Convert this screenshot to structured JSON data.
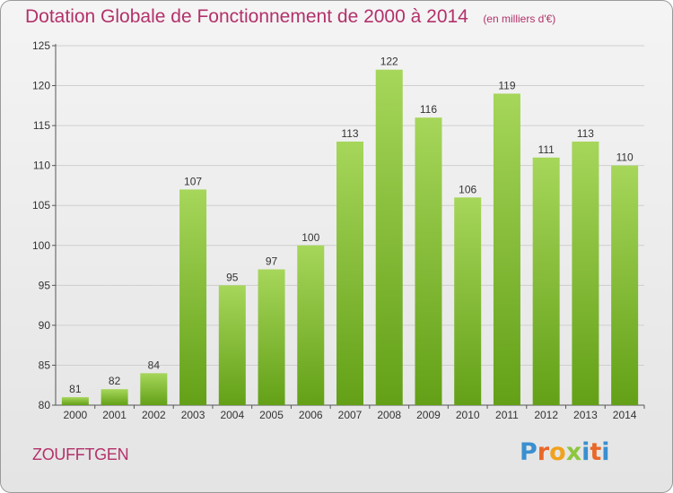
{
  "header": {
    "title": "Dotation Globale de Fonctionnement de 2000 à 2014",
    "unit": "(en milliers d'€)"
  },
  "footer": {
    "commune": "ZOUFFTGEN",
    "logo_letters": [
      "P",
      "r",
      "o",
      "x",
      "i",
      "t",
      "i"
    ]
  },
  "colors": {
    "title": "#b3316a",
    "bar_light": "#a6d65a",
    "bar_dark": "#63a017",
    "logo": [
      "#3a8fd0",
      "#e8682a",
      "#f0a21e",
      "#8cc63f",
      "#3a8fd0",
      "#e8682a",
      "#3a8fd0"
    ]
  },
  "chart_data": {
    "type": "bar",
    "title": "Dotation Globale de Fonctionnement de 2000 à 2014",
    "subtitle": "(en milliers d'€)",
    "categories": [
      "2000",
      "2001",
      "2002",
      "2003",
      "2004",
      "2005",
      "2006",
      "2007",
      "2008",
      "2009",
      "2010",
      "2011",
      "2012",
      "2013",
      "2014"
    ],
    "values": [
      81,
      82,
      84,
      107,
      95,
      97,
      100,
      113,
      122,
      116,
      106,
      119,
      111,
      113,
      110
    ],
    "ylim": [
      80,
      125
    ],
    "yticks": [
      80,
      85,
      90,
      95,
      100,
      105,
      110,
      115,
      120,
      125
    ],
    "grid": true,
    "xlabel": "",
    "ylabel": ""
  }
}
